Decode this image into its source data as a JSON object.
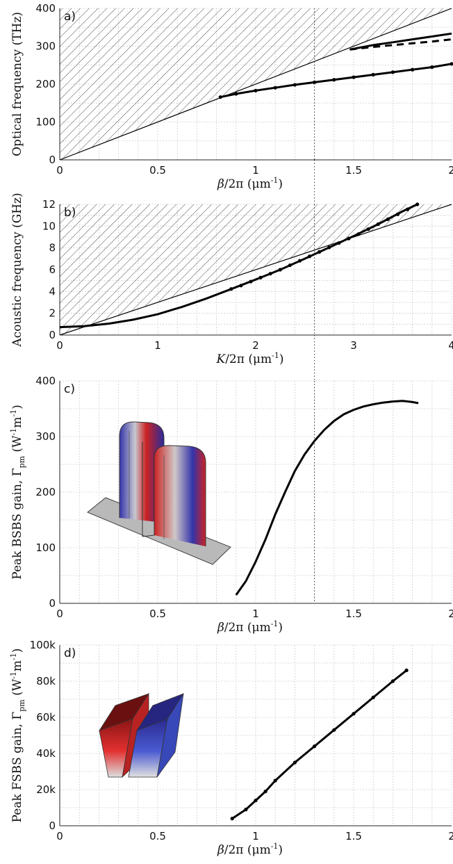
{
  "chart_data": [
    {
      "panel": "a)",
      "type": "line",
      "ylabel": "Optical frequency (THz)",
      "xlabel_italic": "β",
      "xlabel_rest": "/2π (μm",
      "xlabel_sup": "-1",
      "xlabel_close": ")",
      "xlim": [
        0,
        2
      ],
      "ylim": [
        0,
        420
      ],
      "x_ticks": [
        "0",
        "0.5",
        "1",
        "1.5",
        "2"
      ],
      "y_ticks": [
        "0",
        "100",
        "200",
        "300",
        "400"
      ],
      "grid": true,
      "light_line": {
        "x": [
          0,
          2
        ],
        "y": [
          0,
          420
        ]
      },
      "series": [
        {
          "style": "solid-dots",
          "x": [
            0.82,
            0.9,
            1.0,
            1.1,
            1.2,
            1.3,
            1.4,
            1.5,
            1.6,
            1.7,
            1.8,
            1.9,
            2.0
          ],
          "y": [
            174,
            183,
            192,
            200,
            208,
            215,
            222,
            229,
            236,
            243,
            250,
            257,
            266
          ]
        },
        {
          "style": "solid",
          "x": [
            1.48,
            1.6,
            1.7,
            1.8,
            1.9,
            2.0
          ],
          "y": [
            306,
            318,
            326,
            334,
            342,
            350
          ]
        },
        {
          "style": "dashed",
          "x": [
            1.48,
            1.6,
            1.7,
            1.8,
            1.9,
            2.0
          ],
          "y": [
            306,
            313,
            318,
            323,
            328,
            334
          ]
        }
      ],
      "guide_x": 1.3
    },
    {
      "panel": "b)",
      "type": "line",
      "ylabel": "Acoustic frequency (GHz)",
      "xlabel_italic": "K",
      "xlabel_rest": "/2π (μm",
      "xlabel_sup": "-1",
      "xlabel_close": ")",
      "xlim": [
        0,
        4
      ],
      "ylim": [
        0,
        13.2
      ],
      "x_ticks": [
        "0",
        "1",
        "2",
        "3",
        "4"
      ],
      "y_ticks": [
        "0",
        "2",
        "4",
        "6",
        "8",
        "10",
        "12"
      ],
      "grid": true,
      "light_line": {
        "x": [
          0,
          4
        ],
        "y": [
          0,
          13.2
        ]
      },
      "series": [
        {
          "style": "solid",
          "x": [
            0,
            0.25,
            0.5,
            0.75,
            1.0,
            1.25,
            1.5,
            1.75,
            2.0,
            2.25,
            2.5,
            2.75,
            3.0,
            3.25,
            3.5,
            3.65
          ],
          "y": [
            0.8,
            0.9,
            1.15,
            1.55,
            2.1,
            2.85,
            3.7,
            4.65,
            5.6,
            6.6,
            7.7,
            8.85,
            10.0,
            11.2,
            12.5,
            13.2
          ]
        },
        {
          "style": "dots",
          "x": [
            1.75,
            1.85,
            1.95,
            2.05,
            2.15,
            2.25,
            2.35,
            2.45,
            2.55,
            2.65,
            2.75,
            2.85,
            2.95,
            3.05,
            3.15,
            3.25,
            3.35,
            3.45,
            3.55,
            3.65
          ],
          "y": [
            4.65,
            5.0,
            5.4,
            5.8,
            6.2,
            6.6,
            7.05,
            7.5,
            7.95,
            8.4,
            8.85,
            9.3,
            9.75,
            10.2,
            10.7,
            11.2,
            11.7,
            12.2,
            12.7,
            13.2
          ]
        }
      ],
      "guide_x": 2.6
    },
    {
      "panel": "c)",
      "type": "line",
      "ylabel_main": "Peak BSBS gain, Γ",
      "ylabel_sub": "pm",
      "ylabel_unit": "(W",
      "ylabel_unit_sup1": "-1",
      "ylabel_unit_mid": "m",
      "ylabel_unit_sup2": "-1",
      "ylabel_unit_close": ")",
      "xlabel_italic": "β",
      "xlabel_rest": "/2π (μm",
      "xlabel_sup": "-1",
      "xlabel_close": ")",
      "xlim": [
        0,
        2
      ],
      "ylim": [
        0,
        400
      ],
      "x_ticks": [
        "0",
        "0.5",
        "1",
        "1.5",
        "2"
      ],
      "y_ticks": [
        "0",
        "100",
        "200",
        "300",
        "400"
      ],
      "grid": true,
      "series": [
        {
          "style": "solid",
          "x": [
            0.9,
            0.95,
            1.0,
            1.05,
            1.1,
            1.15,
            1.2,
            1.25,
            1.3,
            1.35,
            1.4,
            1.45,
            1.5,
            1.55,
            1.6,
            1.65,
            1.7,
            1.75,
            1.8,
            1.83
          ],
          "y": [
            15,
            40,
            75,
            115,
            160,
            200,
            238,
            268,
            292,
            312,
            328,
            340,
            348,
            354,
            358,
            361,
            363,
            364,
            362,
            360
          ]
        }
      ],
      "guide_x": 1.3
    },
    {
      "panel": "d)",
      "type": "line",
      "ylabel_main": "Peak FSBS gain, Γ",
      "ylabel_sub": "pm",
      "ylabel_unit": "(W",
      "ylabel_unit_sup1": "-1",
      "ylabel_unit_mid": "m",
      "ylabel_unit_sup2": "-1",
      "ylabel_unit_close": ")",
      "xlabel_italic": "β",
      "xlabel_rest": "/2π (μm",
      "xlabel_sup": "-1",
      "xlabel_close": ")",
      "xlim": [
        0,
        2
      ],
      "ylim": [
        0,
        100000
      ],
      "x_ticks": [
        "0",
        "0.5",
        "1",
        "1.5",
        "2"
      ],
      "y_ticks": [
        "0",
        "20k",
        "40k",
        "60k",
        "80k",
        "100k"
      ],
      "grid": true,
      "series": [
        {
          "style": "solid-dots",
          "x": [
            0.88,
            0.95,
            1.0,
            1.05,
            1.1,
            1.2,
            1.3,
            1.4,
            1.5,
            1.6,
            1.7,
            1.77
          ],
          "y": [
            4000,
            9000,
            14000,
            19000,
            25000,
            35000,
            44000,
            53000,
            62000,
            71000,
            80000,
            86000
          ]
        }
      ]
    }
  ]
}
